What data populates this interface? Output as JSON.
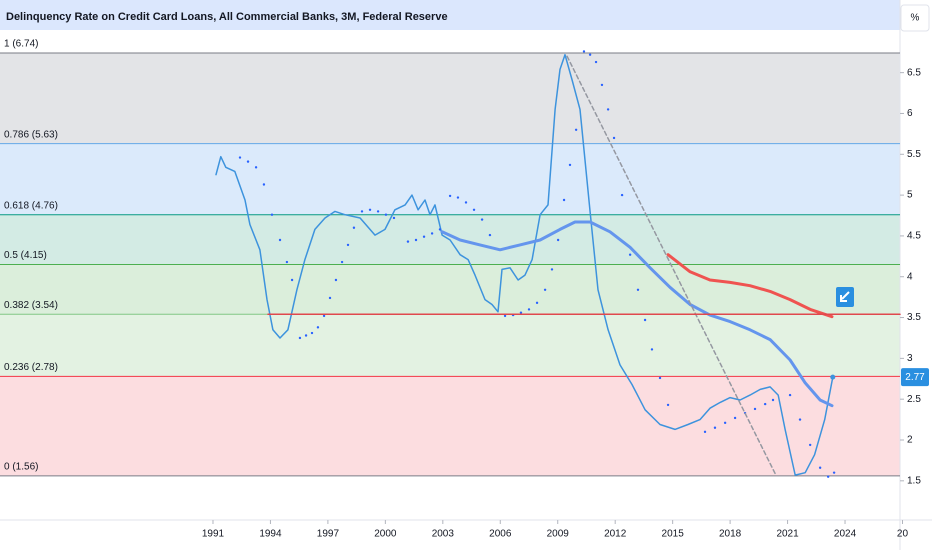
{
  "chart_data": {
    "type": "line",
    "title": "Delinquency Rate on Credit Card Loans, All Commercial Banks, 3M, Federal Reserve",
    "scale_button": "%",
    "xlim": [
      1979.88,
      2026.87
    ],
    "ylim": [
      1.02,
      7.39
    ],
    "xticks": [
      1991,
      1994,
      1997,
      2000,
      2003,
      2006,
      2009,
      2012,
      2015,
      2018,
      2021,
      2024,
      {
        "value": 2027,
        "label": "20"
      }
    ],
    "yticks": [
      1.5,
      2,
      2.5,
      3,
      3.5,
      4,
      4.5,
      5,
      5.5,
      6,
      6.5
    ],
    "last_value": 2.77,
    "last_value_color": "#2a8fe0",
    "fib_levels": [
      {
        "label": "1 (6.74)",
        "value": 6.74,
        "color": "#787b86",
        "fill": "#e3e4e7"
      },
      {
        "label": "0.786 (5.63)",
        "value": 5.63,
        "color": "#64a8e8",
        "fill": "#dbeafb"
      },
      {
        "label": "0.618 (4.76)",
        "value": 4.76,
        "color": "#089981",
        "fill": "#d3ebe4"
      },
      {
        "label": "0.5 (4.15)",
        "value": 4.15,
        "color": "#4caf50",
        "fill": "#dbeedb"
      },
      {
        "label": "0.382 (3.54)",
        "value": 3.54,
        "color": "#81c784",
        "fill": "#e3f2e2"
      },
      {
        "label": "0.236 (2.78)",
        "value": 2.78,
        "color": "#f23645",
        "fill": "#fcdde0"
      },
      {
        "label": "0 (1.56)",
        "value": 1.56,
        "color": "#787b86"
      }
    ],
    "series": [
      {
        "style": "line",
        "color": "#3d93dd",
        "x": [
          1991.16,
          1991.41,
          1991.67,
          1992.14,
          1992.67,
          1992.93,
          1993.45,
          1993.82,
          1994.13,
          1994.5,
          1994.91,
          1995.38,
          1995.8,
          1996.32,
          1996.85,
          1997.37,
          1997.89,
          1998.68,
          1999.46,
          1999.98,
          2000.5,
          2001.03,
          2001.39,
          2001.71,
          2002.07,
          2002.33,
          2002.59,
          2002.96,
          2003.38,
          2003.9,
          2004.32,
          2004.68,
          2005.2,
          2005.57,
          2005.88,
          2006.09,
          2006.51,
          2006.93,
          2007.29,
          2007.66,
          2008.08,
          2008.49,
          2008.86,
          2009.12,
          2009.38,
          2009.75,
          2010.16,
          2010.68,
          2011.1,
          2011.63,
          2012.25,
          2012.88,
          2013.56,
          2014.34,
          2015.12,
          2015.8,
          2016.43,
          2016.95,
          2017.48,
          2018.0,
          2018.52,
          2019.04,
          2019.57,
          2020.09,
          2020.51,
          2020.87,
          2021.4,
          2021.92,
          2022.41,
          2022.94,
          2023.36
        ],
        "values": [
          5.25,
          5.47,
          5.34,
          5.29,
          4.94,
          4.64,
          4.33,
          3.72,
          3.35,
          3.25,
          3.35,
          3.84,
          4.21,
          4.58,
          4.72,
          4.8,
          4.76,
          4.72,
          4.51,
          4.58,
          4.82,
          4.88,
          5.0,
          4.82,
          4.94,
          4.76,
          4.88,
          4.51,
          4.45,
          4.27,
          4.21,
          4.02,
          3.72,
          3.66,
          3.57,
          4.09,
          4.11,
          3.96,
          4.02,
          4.21,
          4.76,
          4.88,
          6.05,
          6.54,
          6.72,
          6.41,
          6.05,
          4.82,
          3.84,
          3.35,
          2.92,
          2.68,
          2.37,
          2.19,
          2.13,
          2.19,
          2.25,
          2.39,
          2.46,
          2.52,
          2.49,
          2.55,
          2.62,
          2.65,
          2.55,
          2.13,
          1.57,
          1.6,
          1.82,
          2.25,
          2.77
        ]
      },
      {
        "style": "dots",
        "color": "#2962ff",
        "x": [
          1992.41,
          1992.83,
          1993.25,
          1993.66,
          1994.08,
          1994.5,
          1994.86,
          1995.13,
          1995.54,
          1995.86,
          1996.17,
          1996.48,
          1996.8,
          1997.11,
          1997.42,
          1997.74,
          1998.05,
          1998.36,
          1998.78,
          1999.2,
          1999.62,
          2000.03,
          2000.45,
          2001.18,
          2001.6,
          2002.02,
          2002.44,
          2002.85,
          2003.38,
          2003.79,
          2004.21,
          2004.63,
          2005.05,
          2005.46,
          2006.25,
          2006.67,
          2007.08,
          2007.5,
          2007.92,
          2008.34,
          2008.7,
          2009.02,
          2009.33,
          2009.64,
          2009.96,
          2010.37,
          2010.69,
          2011.0,
          2011.31,
          2011.63,
          2011.94,
          2012.36,
          2012.78,
          2013.19,
          2013.56,
          2013.92,
          2014.34,
          2014.76,
          2016.69,
          2017.21,
          2017.74,
          2018.26,
          2018.78,
          2019.3,
          2019.83,
          2020.24,
          2021.13,
          2021.65,
          2022.18,
          2022.7,
          2023.12,
          2023.43
        ],
        "values": [
          5.46,
          5.41,
          5.34,
          5.13,
          4.76,
          4.45,
          4.18,
          3.96,
          3.25,
          3.28,
          3.31,
          3.38,
          3.52,
          3.74,
          3.96,
          4.18,
          4.39,
          4.6,
          4.8,
          4.82,
          4.8,
          4.76,
          4.72,
          4.43,
          4.45,
          4.49,
          4.53,
          4.58,
          4.99,
          4.97,
          4.91,
          4.82,
          4.7,
          4.51,
          3.52,
          3.53,
          3.56,
          3.6,
          3.68,
          3.84,
          4.09,
          4.45,
          4.94,
          5.37,
          5.8,
          6.76,
          6.72,
          6.63,
          6.35,
          6.05,
          5.7,
          5.0,
          4.27,
          3.84,
          3.47,
          3.11,
          2.76,
          2.43,
          2.1,
          2.15,
          2.21,
          2.27,
          2.33,
          2.38,
          2.44,
          2.49,
          2.55,
          2.25,
          1.94,
          1.66,
          1.55,
          1.6
        ]
      },
      {
        "style": "line",
        "width": 3,
        "color": "#6495ed",
        "x": [
          2002.96,
          2003.9,
          2004.94,
          2005.99,
          2007.03,
          2008.08,
          2009.12,
          2009.9,
          2010.69,
          2011.73,
          2012.78,
          2013.82,
          2014.86,
          2015.91,
          2016.95,
          2018.0,
          2019.04,
          2020.09,
          2021.13,
          2021.92,
          2022.7,
          2023.32
        ],
        "values": [
          4.55,
          4.45,
          4.39,
          4.33,
          4.39,
          4.45,
          4.58,
          4.67,
          4.67,
          4.55,
          4.36,
          4.11,
          3.87,
          3.66,
          3.53,
          3.45,
          3.35,
          3.23,
          2.98,
          2.7,
          2.49,
          2.42
        ]
      },
      {
        "style": "line",
        "width": 3,
        "color": "#ef5350",
        "x": [
          2014.76,
          2015.91,
          2016.95,
          2018.0,
          2019.04,
          2020.09,
          2021.13,
          2022.18,
          2023.32
        ],
        "values": [
          4.27,
          4.06,
          3.96,
          3.93,
          3.89,
          3.82,
          3.72,
          3.6,
          3.51
        ]
      },
      {
        "style": "dashed",
        "color": "#9598a1",
        "x": [
          2009.49,
          2020.35
        ],
        "values": [
          6.7,
          1.59
        ]
      },
      {
        "style": "line",
        "width": 1.5,
        "color": "#e0484d",
        "x": [
          1993.87,
          2026.87
        ],
        "values": [
          3.54,
          3.54
        ]
      }
    ]
  }
}
